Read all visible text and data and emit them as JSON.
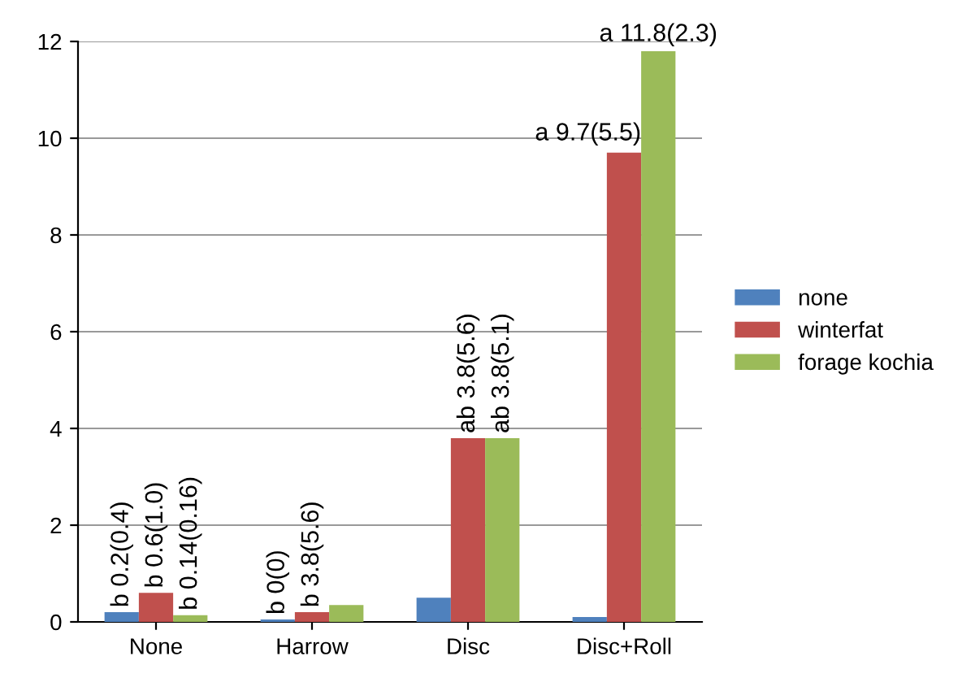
{
  "chart_data": {
    "type": "bar",
    "categories": [
      "None",
      "Harrow",
      "Disc",
      "Disc+Roll"
    ],
    "series": [
      {
        "name": "none",
        "color": "#4f81bd",
        "values": [
          0.2,
          0.05,
          0.5,
          0.1
        ],
        "value_labels": [
          "b 0.2(0.4)",
          "b 0(0)",
          null,
          null
        ]
      },
      {
        "name": "winterfat",
        "color": "#c0504d",
        "values": [
          0.6,
          0.2,
          3.8,
          9.7
        ],
        "value_labels": [
          "b 0.6(1.0)",
          "b 3.8(5.6)",
          "ab 3.8(5.6)",
          "a 9.7(5.5)"
        ]
      },
      {
        "name": "forage kochia",
        "color": "#9bbb59",
        "values": [
          0.14,
          0.35,
          3.8,
          11.8
        ],
        "value_labels": [
          "b 0.14(0.16)",
          null,
          "ab 3.8(5.1)",
          "a 11.8(2.3)"
        ]
      }
    ],
    "ylim": [
      0,
      12
    ],
    "yticks": [
      0,
      2,
      4,
      6,
      8,
      10,
      12
    ],
    "grid": "y",
    "legend": "right"
  }
}
